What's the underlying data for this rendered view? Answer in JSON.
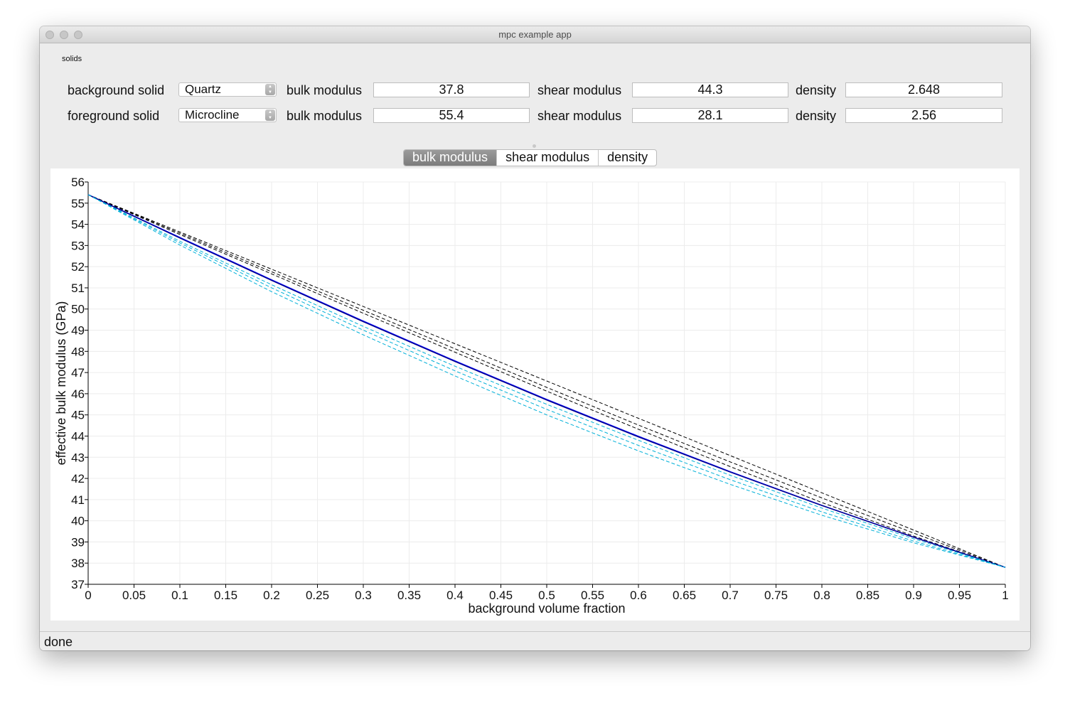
{
  "window": {
    "title": "mpc example app"
  },
  "solids_group": {
    "label": "solids",
    "rows": [
      {
        "label": "background solid",
        "mineral": "Quartz",
        "bulk_label": "bulk modulus",
        "bulk": "37.8",
        "shear_label": "shear modulus",
        "shear": "44.3",
        "density_label": "density",
        "density": "2.648"
      },
      {
        "label": "foreground solid",
        "mineral": "Microcline",
        "bulk_label": "bulk modulus",
        "bulk": "55.4",
        "shear_label": "shear modulus",
        "shear": "28.1",
        "density_label": "density",
        "density": "2.56"
      }
    ]
  },
  "tabs": [
    {
      "label": "bulk modulus",
      "active": true
    },
    {
      "label": "shear modulus",
      "active": false
    },
    {
      "label": "density",
      "active": false
    }
  ],
  "chart_data": {
    "type": "line",
    "xlabel": "background volume fraction",
    "ylabel": "effective bulk modulus (GPa)",
    "xlim": [
      0,
      1
    ],
    "ylim": [
      37,
      56
    ],
    "x_ticks": [
      0,
      0.05,
      0.1,
      0.15,
      0.2,
      0.25,
      0.3,
      0.35,
      0.4,
      0.45,
      0.5,
      0.55,
      0.6,
      0.65,
      0.7,
      0.75,
      0.8,
      0.85,
      0.9,
      0.95,
      1
    ],
    "x_tick_labels": [
      "0",
      "0.05",
      "0.1",
      "0.15",
      "0.2",
      "0.25",
      "0.3",
      "0.35",
      "0.4",
      "0.45",
      "0.5",
      "0.55",
      "0.6",
      "0.65",
      "0.7",
      "0.75",
      "0.8",
      "0.85",
      "0.9",
      "0.95",
      "1"
    ],
    "y_ticks": [
      37,
      38,
      39,
      40,
      41,
      42,
      43,
      44,
      45,
      46,
      47,
      48,
      49,
      50,
      51,
      52,
      53,
      54,
      55,
      56
    ],
    "grid": true,
    "x": [
      0,
      0.1,
      0.2,
      0.3,
      0.4,
      0.5,
      0.6,
      0.7,
      0.8,
      0.9,
      1
    ],
    "series": [
      {
        "color": "#000000",
        "dashed": true,
        "values": [
          55.4,
          53.64,
          51.88,
          50.12,
          48.36,
          46.6,
          44.84,
          43.08,
          41.32,
          39.56,
          37.8
        ]
      },
      {
        "color": "#000000",
        "dashed": true,
        "values": [
          55.4,
          53.58,
          51.76,
          49.94,
          48.12,
          46.3,
          44.52,
          42.78,
          41.08,
          39.42,
          37.8
        ]
      },
      {
        "color": "#000000",
        "dashed": true,
        "values": [
          55.4,
          53.52,
          51.66,
          49.8,
          47.96,
          46.12,
          44.32,
          42.56,
          40.86,
          39.28,
          37.8
        ]
      },
      {
        "color": "#0000ff",
        "dashed": false,
        "values": [
          55.4,
          53.38,
          51.38,
          49.43,
          47.55,
          45.73,
          43.99,
          42.32,
          40.73,
          39.23,
          37.8
        ]
      },
      {
        "color": "#00008b",
        "dashed": false,
        "values": [
          55.4,
          53.35,
          51.35,
          49.4,
          47.52,
          45.7,
          43.96,
          42.3,
          40.72,
          39.22,
          37.8
        ]
      },
      {
        "color": "#00b0d8",
        "dashed": true,
        "values": [
          55.4,
          53.2,
          51.15,
          49.18,
          47.3,
          45.5,
          43.8,
          42.15,
          40.6,
          39.15,
          37.8
        ]
      },
      {
        "color": "#00b0d8",
        "dashed": true,
        "values": [
          55.4,
          53.12,
          51.0,
          49.0,
          47.08,
          45.26,
          43.56,
          41.94,
          40.42,
          39.04,
          37.8
        ]
      },
      {
        "color": "#00b0d8",
        "dashed": true,
        "values": [
          55.4,
          53.02,
          50.82,
          48.78,
          46.84,
          45.0,
          43.3,
          41.72,
          40.26,
          38.96,
          37.8
        ]
      }
    ]
  },
  "status": {
    "text": "done"
  }
}
